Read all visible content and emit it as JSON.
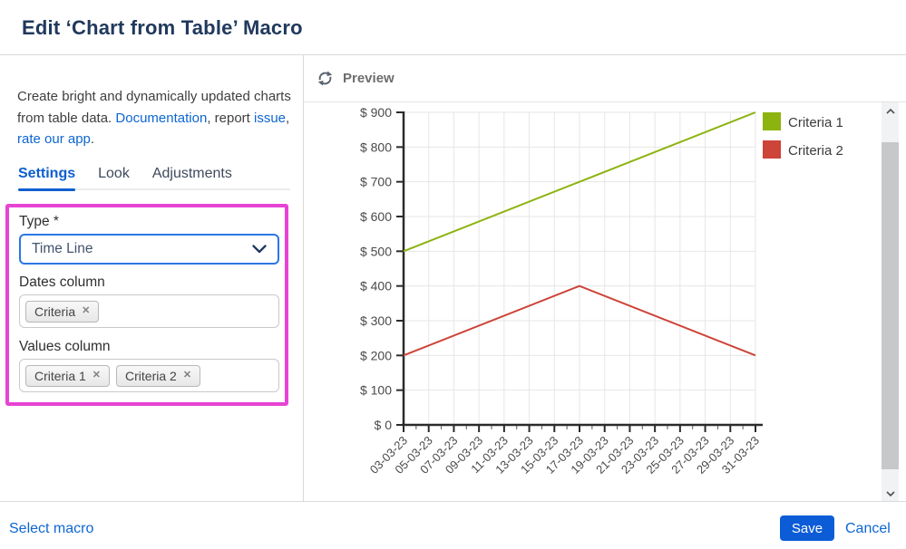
{
  "window": {
    "title": "Edit ‘Chart from Table’ Macro"
  },
  "sidebar": {
    "description": {
      "part1": "Create bright and dynamically updated charts from table data. ",
      "link_documentation": "Documentation",
      "part2": ", report ",
      "link_issue": "issue",
      "part3": ", ",
      "link_rate": "rate our app",
      "part4": "."
    },
    "tabs": [
      {
        "label": "Settings",
        "active": true
      },
      {
        "label": "Look",
        "active": false
      },
      {
        "label": "Adjustments",
        "active": false
      }
    ],
    "fields": {
      "type": {
        "label": "Type *",
        "value": "Time Line"
      },
      "dates_column": {
        "label": "Dates column",
        "tags": [
          "Criteria"
        ]
      },
      "values_column": {
        "label": "Values column",
        "tags": [
          "Criteria 1",
          "Criteria 2"
        ]
      }
    },
    "highlight_color": "#e743d4"
  },
  "preview": {
    "title": "Preview"
  },
  "footer": {
    "select_macro": "Select macro",
    "save": "Save",
    "cancel": "Cancel"
  },
  "icons": {
    "refresh": "sync-arrows",
    "select_chevron": "chevron-down",
    "tag_remove": "✕"
  },
  "colors": {
    "link_blue": "#0d66d0",
    "tab_active_blue": "#0d5fd0",
    "save_button_blue": "#0c5cd7",
    "select_border_blue": "#2b76e5",
    "title_navy": "#20395d",
    "highlight_magenta": "#e743d4"
  },
  "chart_data": {
    "type": "line",
    "title": "",
    "xlabel": "",
    "ylabel": "",
    "y_prefix": "$ ",
    "ylim": [
      0,
      900
    ],
    "y_step": 100,
    "day_range": [
      3,
      31
    ],
    "x_label_step": 2,
    "grid": true,
    "legend_position": "top-right",
    "x_labels": [
      "03-03-23",
      "05-03-23",
      "07-03-23",
      "09-03-23",
      "11-03-23",
      "13-03-23",
      "15-03-23",
      "17-03-23",
      "19-03-23",
      "21-03-23",
      "23-03-23",
      "25-03-23",
      "27-03-23",
      "29-03-23",
      "31-03-23"
    ],
    "series": [
      {
        "name": "Criteria 1",
        "color": "#8db30f",
        "points": [
          [
            3,
            500
          ],
          [
            17,
            700
          ],
          [
            31,
            900
          ]
        ]
      },
      {
        "name": "Criteria 2",
        "color": "#cd4438",
        "points": [
          [
            3,
            200
          ],
          [
            17,
            400
          ],
          [
            31,
            200
          ]
        ]
      }
    ]
  }
}
